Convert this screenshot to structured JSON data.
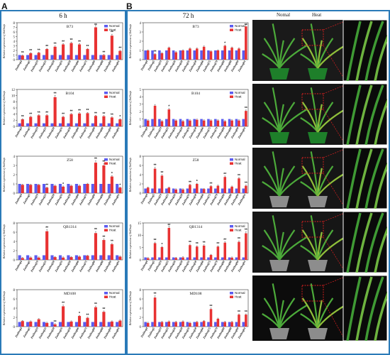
{
  "panels": {
    "A": {
      "letter": "A",
      "title": "6 h"
    },
    "B": {
      "letter": "B",
      "title": "72 h"
    }
  },
  "photos": {
    "normal_label": "Nomal",
    "heat_label": "Heat"
  },
  "legend": {
    "normal": "Normal",
    "heat": "Heat"
  },
  "colors": {
    "normal": "#5b5bf0",
    "heat": "#e83232",
    "frame": "#2a7ab8",
    "sig": "#111111"
  },
  "ylabel": "Relative expression of ZmDnajs",
  "genes_a": [
    "ZmDnaj4",
    "ZmDnaj5",
    "ZmDnaj19",
    "ZmDnaj25",
    "ZmDnaj28",
    "ZmDnaj35",
    "ZmDnaj58",
    "ZmDnaj66",
    "ZmDnaj75",
    "ZmDnaj80",
    "ZmDnaj88",
    "ZmDnaj90",
    "ZmDnaj91"
  ],
  "genes_b": [
    "ZmDnaj4",
    "ZmDnaj5",
    "ZmDnaj19",
    "ZmDnaj25",
    "ZmDnaj26",
    "ZmDnaj28",
    "ZmDnaj35",
    "ZmDnaj58",
    "ZmDnaj66",
    "ZmDnaj75",
    "ZmDnaj79",
    "ZmDnaj80",
    "ZmDnaj88",
    "ZmDnaj90",
    "ZmDnaj91"
  ],
  "chart_data": [
    {
      "type": "bar",
      "panel": "A",
      "title": "B73",
      "ylim": [
        0,
        8
      ],
      "yticks": [
        0,
        1,
        2,
        3,
        4,
        5,
        6,
        7,
        8
      ],
      "normal": [
        1,
        1,
        1,
        1,
        1,
        1,
        1,
        1,
        1,
        1,
        1,
        1,
        1
      ],
      "heat": [
        0.9,
        1.4,
        1.5,
        2.3,
        2.8,
        3.3,
        3.6,
        3.3,
        2.3,
        7.0,
        1.0,
        5.2,
        1.9
      ],
      "sig": [
        "**",
        "**",
        "**",
        "**",
        "**",
        "**",
        "**",
        "**",
        "**",
        "**",
        "**",
        "**",
        "**"
      ]
    },
    {
      "type": "bar",
      "panel": "A",
      "title": "B104",
      "ylim": [
        0,
        12
      ],
      "yticks": [
        0,
        2,
        4,
        6,
        8,
        10,
        12
      ],
      "normal": [
        1,
        1,
        1,
        1,
        1,
        1,
        1,
        1,
        1,
        1,
        1,
        1,
        1
      ],
      "heat": [
        2.3,
        3.1,
        3.6,
        3.6,
        9.5,
        3.1,
        4.0,
        4.2,
        4.3,
        3.4,
        3.3,
        2.9,
        2.3
      ],
      "sig": [
        "**",
        "**",
        "**",
        "**",
        "**",
        "**",
        "**",
        "**",
        "**",
        "**",
        "**",
        "**",
        "*"
      ]
    },
    {
      "type": "bar",
      "panel": "A",
      "title": "Z58",
      "ylim": [
        0,
        4
      ],
      "yticks": [
        0,
        1,
        2,
        3,
        4
      ],
      "normal": [
        1,
        1,
        1,
        1,
        1,
        1,
        1,
        1,
        1,
        1,
        1,
        1,
        1
      ],
      "heat": [
        0.9,
        0.9,
        0.9,
        0.6,
        0.8,
        0.7,
        0.8,
        0.8,
        1.0,
        3.3,
        3.0,
        1.8,
        0.6
      ],
      "sig": [
        "",
        "",
        "",
        "**",
        "",
        "*",
        "",
        "",
        "",
        "**",
        "**",
        "*",
        "*"
      ]
    },
    {
      "type": "bar",
      "panel": "A",
      "title": "QB1314",
      "ylim": [
        0,
        8
      ],
      "yticks": [
        0,
        2,
        4,
        6,
        8
      ],
      "normal": [
        1,
        1,
        1,
        1,
        1,
        1,
        1,
        1,
        1,
        1,
        1,
        1,
        1
      ],
      "heat": [
        0.4,
        0.5,
        0.5,
        6.2,
        0.6,
        0.5,
        0.6,
        0.7,
        0.9,
        5.8,
        4.3,
        3.4,
        0.7
      ],
      "sig": [
        "",
        "",
        "",
        "**",
        "",
        "",
        "",
        "",
        "",
        "**",
        "**",
        "**",
        ""
      ]
    },
    {
      "type": "bar",
      "panel": "A",
      "title": "MD108",
      "ylim": [
        0,
        8
      ],
      "yticks": [
        0,
        2,
        4,
        6,
        8
      ],
      "normal": [
        1,
        1,
        1,
        1,
        1,
        1,
        1,
        1,
        1,
        1,
        1,
        1,
        1
      ],
      "heat": [
        1.2,
        1.1,
        1.6,
        0.8,
        0.5,
        4.4,
        1.1,
        2.3,
        1.9,
        4.2,
        3.2,
        1.1,
        1.3
      ],
      "sig": [
        "",
        "",
        "",
        "",
        "**",
        "**",
        "",
        "*",
        "**",
        "**",
        "**",
        "",
        ""
      ]
    },
    {
      "type": "bar",
      "panel": "B",
      "title": "B73",
      "ylim": [
        0,
        4
      ],
      "yticks": [
        0,
        1,
        2,
        3,
        4
      ],
      "normal": [
        1,
        1,
        1,
        1,
        1,
        1,
        1,
        1,
        1,
        1,
        1,
        1,
        1,
        1,
        1
      ],
      "heat": [
        1.0,
        0.6,
        0.7,
        1.3,
        0.8,
        1.0,
        1.2,
        1.2,
        1.4,
        0.9,
        1.0,
        1.5,
        1.3,
        1.2,
        3.6
      ],
      "sig": [
        "",
        "**",
        "",
        "",
        "",
        "",
        "",
        "",
        "",
        "",
        "",
        "*",
        "",
        "",
        "**"
      ]
    },
    {
      "type": "bar",
      "panel": "B",
      "title": "B104",
      "ylim": [
        0,
        5
      ],
      "yticks": [
        0,
        1,
        2,
        3,
        4,
        5
      ],
      "normal": [
        1,
        1,
        1,
        1,
        1,
        1,
        1,
        1,
        1,
        1,
        1,
        1,
        1,
        1,
        1
      ],
      "heat": [
        0.8,
        2.8,
        0.7,
        2.3,
        0.8,
        0.7,
        0.8,
        0.9,
        0.8,
        0.8,
        0.8,
        0.7,
        0.8,
        0.8,
        2.1
      ],
      "sig": [
        "",
        "",
        "",
        "*",
        "",
        "",
        "",
        "",
        "",
        "",
        "",
        "",
        "",
        "",
        "**"
      ]
    },
    {
      "type": "bar",
      "panel": "B",
      "title": "Z58",
      "ylim": [
        0,
        8
      ],
      "yticks": [
        0,
        2,
        4,
        6,
        8
      ],
      "normal": [
        1,
        1,
        1,
        1,
        1,
        1,
        1,
        1,
        1,
        1,
        1,
        1,
        1,
        1,
        1
      ],
      "heat": [
        1.2,
        5.3,
        3.8,
        1.2,
        0.8,
        0.8,
        1.8,
        2.0,
        0.9,
        1.5,
        1.6,
        3.5,
        1.4,
        3.2,
        1.6
      ],
      "sig": [
        "",
        "**",
        "**",
        "",
        "",
        "",
        "**",
        "*",
        "",
        "**",
        "",
        "**",
        "",
        "**",
        "**"
      ]
    },
    {
      "type": "bar",
      "panel": "B",
      "title": "QB1314",
      "ylim": [
        0,
        15
      ],
      "yticks": [
        0,
        5,
        10,
        15
      ],
      "normal": [
        1,
        1,
        1,
        1,
        1,
        1,
        1,
        1,
        1,
        1,
        1,
        1,
        1,
        1,
        1
      ],
      "heat": [
        0.7,
        6.8,
        5.2,
        13.0,
        0.8,
        1.0,
        6.0,
        5.4,
        5.8,
        2.0,
        5.4,
        7.0,
        0.9,
        7.3,
        10.8
      ],
      "sig": [
        "",
        "**",
        "*",
        "**",
        "",
        "",
        "**",
        "**",
        "**",
        "",
        "**",
        "**",
        "",
        "**",
        "**"
      ]
    },
    {
      "type": "bar",
      "panel": "B",
      "title": "MD108",
      "ylim": [
        0,
        8
      ],
      "yticks": [
        0,
        2,
        4,
        6,
        8
      ],
      "normal": [
        1,
        1,
        1,
        1,
        1,
        1,
        1,
        1,
        1,
        1,
        1,
        1,
        1,
        1,
        1
      ],
      "heat": [
        0.8,
        6.3,
        1.0,
        1.1,
        1.0,
        1.1,
        0.8,
        1.0,
        1.2,
        3.8,
        1.7,
        1.0,
        1.0,
        2.6,
        2.6
      ],
      "sig": [
        "",
        "**",
        "",
        "",
        "",
        "",
        "",
        "",
        "",
        "**",
        "",
        "",
        "",
        "**",
        "**"
      ]
    }
  ]
}
